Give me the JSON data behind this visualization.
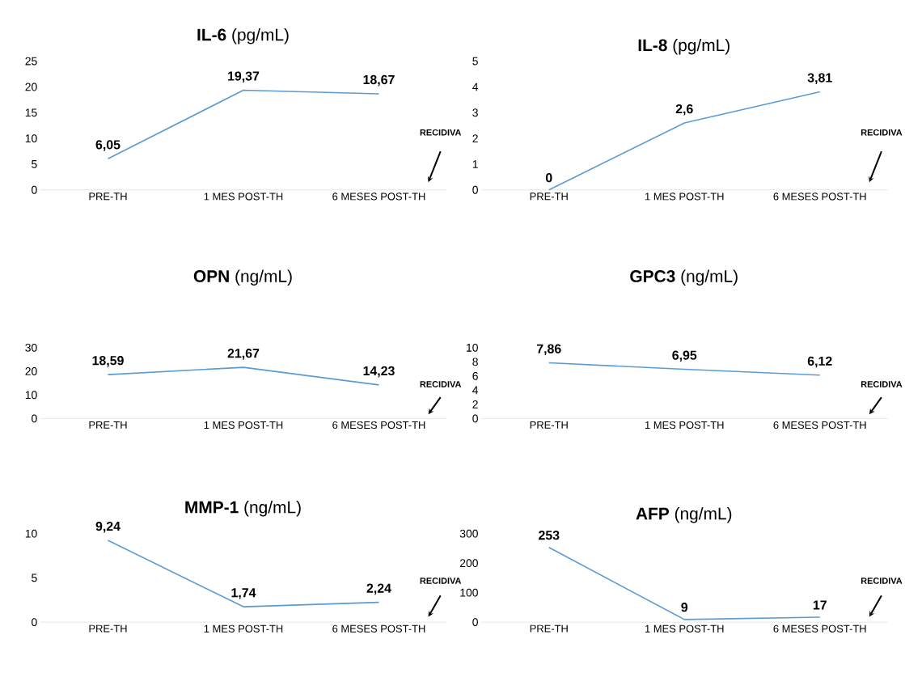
{
  "chart_data": [
    {
      "type": "line",
      "title": "**IL-6** (pg/mL)",
      "categories": [
        "PRE-TH",
        "1 MES  POST-TH",
        "6 MESES  POST-TH"
      ],
      "values": [
        6.05,
        19.37,
        18.67
      ],
      "value_labels": [
        "6,05",
        "19,37",
        "18,67"
      ],
      "color": "#5b9bd5",
      "ylim": [
        0,
        25
      ],
      "yticks": [
        0,
        5,
        10,
        15,
        20,
        25
      ],
      "annotations": [
        "RECIDIVA"
      ]
    },
    {
      "type": "line",
      "title": "**IL-8** (pg/mL)",
      "categories": [
        "PRE-TH",
        "1 MES  POST-TH",
        "6 MESES  POST-TH"
      ],
      "values": [
        0,
        2.6,
        3.81
      ],
      "value_labels": [
        "0",
        "2,6",
        "3,81"
      ],
      "color": "#5b9bd5",
      "ylim": [
        0,
        5
      ],
      "yticks": [
        0,
        1,
        2,
        3,
        4,
        5
      ],
      "annotations": [
        "RECIDIVA"
      ]
    },
    {
      "type": "line",
      "title": "**OPN** (ng/mL)",
      "categories": [
        "PRE-TH",
        "1 MES  POST-TH",
        "6 MESES  POST-TH"
      ],
      "values": [
        18.59,
        21.67,
        14.23
      ],
      "value_labels": [
        "18,59",
        "21,67",
        "14,23"
      ],
      "color": "#5b9bd5",
      "ylim": [
        0,
        30
      ],
      "yticks": [
        0,
        10,
        20,
        30
      ],
      "annotations": [
        "RECIDIVA"
      ]
    },
    {
      "type": "line",
      "title": "**GPC3** (ng/mL)",
      "categories": [
        "PRE-TH",
        "1 MES  POST-TH",
        "6 MESES  POST-TH"
      ],
      "values": [
        7.86,
        6.95,
        6.12
      ],
      "value_labels": [
        "7,86",
        "6,95",
        "6,12"
      ],
      "color": "#5b9bd5",
      "ylim": [
        0,
        10
      ],
      "yticks": [
        0,
        2,
        4,
        6,
        8,
        10
      ],
      "annotations": [
        "RECIDIVA"
      ]
    },
    {
      "type": "line",
      "title": "**MMP-1** (ng/mL)",
      "categories": [
        "PRE-TH",
        "1 MES  POST-TH",
        "6 MESES  POST-TH"
      ],
      "values": [
        9.24,
        1.74,
        2.24
      ],
      "value_labels": [
        "9,24",
        "1,74",
        "2,24"
      ],
      "color": "#5b9bd5",
      "ylim": [
        0,
        10
      ],
      "yticks": [
        0,
        5,
        10
      ],
      "annotations": [
        "RECIDIVA"
      ]
    },
    {
      "type": "line",
      "title": "**AFP** (ng/mL)",
      "categories": [
        "PRE-TH",
        "1 MES  POST-TH",
        "6 MESES  POST-TH"
      ],
      "values": [
        253,
        9,
        17
      ],
      "value_labels": [
        "253",
        "9",
        "17"
      ],
      "color": "#5b9bd5",
      "ylim": [
        0,
        300
      ],
      "yticks": [
        0,
        100,
        200,
        300
      ],
      "annotations": [
        "RECIDIVA"
      ]
    }
  ]
}
